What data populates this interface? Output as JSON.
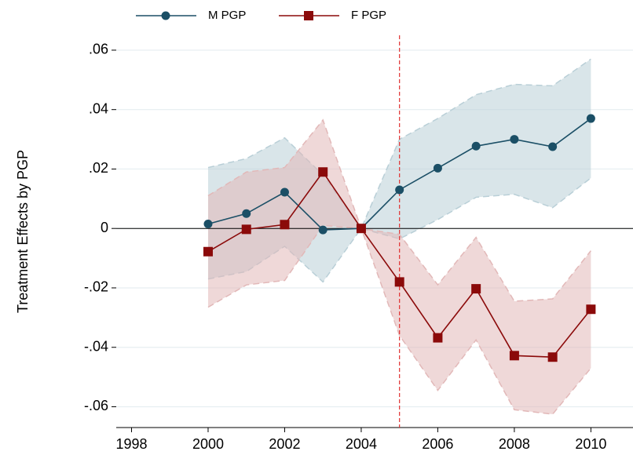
{
  "chart_data": {
    "type": "line",
    "y_label": "Treatment Effects by PGP",
    "x": [
      2000,
      2001,
      2002,
      2003,
      2004,
      2005,
      2006,
      2007,
      2008,
      2009,
      2010
    ],
    "series": [
      {
        "name": "M PGP",
        "color": "#1b4f66",
        "band_color": "#b9cfd7",
        "marker": "circle",
        "values": [
          0.0015,
          0.005,
          0.0122,
          -0.0005,
          0,
          0.013,
          0.0203,
          0.0277,
          0.03,
          0.0275,
          0.037
        ],
        "lower": [
          -0.017,
          -0.0145,
          -0.006,
          -0.018,
          0,
          -0.0035,
          0.003,
          0.0105,
          0.0115,
          0.007,
          0.017
        ],
        "upper": [
          0.0205,
          0.0235,
          0.0305,
          0.018,
          0,
          0.03,
          0.037,
          0.045,
          0.0485,
          0.048,
          0.057
        ]
      },
      {
        "name": "F PGP",
        "color": "#8b0a0a",
        "band_color": "#e2b8b8",
        "marker": "square",
        "values": [
          -0.0078,
          -0.0003,
          0.0013,
          0.019,
          0,
          -0.018,
          -0.0368,
          -0.0203,
          -0.0428,
          -0.0433,
          -0.0272
        ],
        "lower": [
          -0.0265,
          -0.019,
          -0.0175,
          0.001,
          0,
          -0.036,
          -0.0545,
          -0.0375,
          -0.061,
          -0.0625,
          -0.047
        ],
        "upper": [
          0.011,
          0.019,
          0.0205,
          0.0365,
          0,
          -0.002,
          -0.019,
          -0.003,
          -0.0245,
          -0.0237,
          -0.0075
        ]
      }
    ],
    "xlim": [
      1997.6,
      2011.1
    ],
    "xticks": [
      1998,
      2000,
      2002,
      2004,
      2006,
      2008,
      2010
    ],
    "ylim": [
      -0.067,
      0.065
    ],
    "yticks": [
      {
        "value": -0.06,
        "label": "-.06"
      },
      {
        "value": -0.04,
        "label": "-.04"
      },
      {
        "value": -0.02,
        "label": "-.02"
      },
      0,
      {
        "value": 0.02,
        "label": ".02"
      },
      {
        "value": 0.04,
        "label": ".04"
      },
      {
        "value": 0.06,
        "label": ".06"
      }
    ],
    "grid": true,
    "hline": 0,
    "vline": 2005,
    "vline_color": "#e03030",
    "legend": "top"
  }
}
